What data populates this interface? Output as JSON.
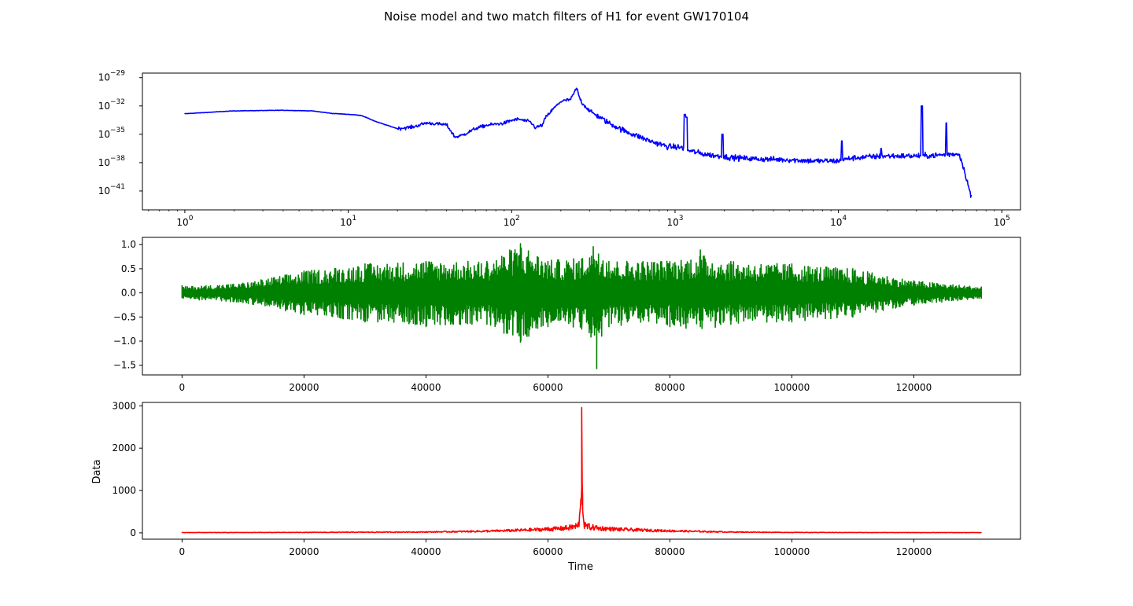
{
  "figure": {
    "title": "Noise model and two match filters of H1 for event GW170104"
  },
  "chart_data": [
    {
      "id": "noise-psd",
      "type": "line",
      "xscale": "log",
      "yscale": "log",
      "xlim": [
        0.55,
        130000
      ],
      "ylim": [
        1e-43,
        3e-29
      ],
      "xticks": [
        1,
        10,
        100,
        1000,
        10000,
        100000
      ],
      "xtick_labels": [
        {
          "base": "10",
          "exp": "0"
        },
        {
          "base": "10",
          "exp": "1"
        },
        {
          "base": "10",
          "exp": "2"
        },
        {
          "base": "10",
          "exp": "3"
        },
        {
          "base": "10",
          "exp": "4"
        },
        {
          "base": "10",
          "exp": "5"
        }
      ],
      "yticks": [
        1e-29,
        1e-32,
        1e-35,
        1e-38,
        1e-41
      ],
      "ytick_labels": [
        {
          "base": "10",
          "exp": "−29"
        },
        {
          "base": "10",
          "exp": "−32"
        },
        {
          "base": "10",
          "exp": "−35"
        },
        {
          "base": "10",
          "exp": "−38"
        },
        {
          "base": "10",
          "exp": "−41"
        }
      ],
      "xlabel": "",
      "ylabel": "",
      "grid": false,
      "series": [
        {
          "color": "#0000ff",
          "x": [
            1,
            2,
            4,
            6,
            8,
            10,
            12,
            15,
            20,
            25,
            30,
            40,
            45,
            50,
            60,
            70,
            90,
            100,
            110,
            130,
            140,
            155,
            160,
            180,
            200,
            230,
            250,
            260,
            270,
            300,
            400,
            500,
            700,
            900,
            1100,
            1200,
            1500,
            2000,
            3000,
            5000,
            7000,
            10000,
            12000,
            15000,
            20000,
            30000,
            40000,
            50000,
            55000,
            60000,
            65000
          ],
          "y": [
            1.5e-33,
            3e-33,
            3.5e-33,
            3e-33,
            1.6e-33,
            1.3e-33,
            1e-33,
            2e-34,
            4e-35,
            6e-35,
            1.6e-34,
            1e-34,
            5e-36,
            8e-36,
            4e-35,
            9e-35,
            1.5e-34,
            3e-34,
            4e-34,
            2e-34,
            5e-35,
            1e-34,
            5e-34,
            5e-33,
            3e-32,
            5e-32,
            8e-31,
            8e-32,
            2e-32,
            3e-33,
            1.3e-34,
            2e-35,
            2e-36,
            5e-37,
            4e-37,
            2e-37,
            8e-38,
            4e-38,
            2.5e-38,
            2e-38,
            1.5e-38,
            1.5e-38,
            3e-38,
            4e-38,
            5e-38,
            5e-38,
            6e-38,
            8e-38,
            8e-38,
            5e-40,
            2e-42
          ]
        }
      ]
    },
    {
      "id": "match-filter-1",
      "type": "line",
      "xlim": [
        -6500,
        137500
      ],
      "ylim": [
        -1.7,
        1.15
      ],
      "xticks": [
        0,
        20000,
        40000,
        60000,
        80000,
        100000,
        120000
      ],
      "xtick_labels": [
        "0",
        "20000",
        "40000",
        "60000",
        "80000",
        "100000",
        "120000"
      ],
      "yticks": [
        1.0,
        0.5,
        0.0,
        -0.5,
        -1.0,
        -1.5
      ],
      "ytick_labels": [
        "1.0",
        "0.5",
        "0.0",
        "−0.5",
        "−1.0",
        "−1.5"
      ],
      "xlabel": "",
      "ylabel": "",
      "grid": false,
      "series": [
        {
          "color": "#008000",
          "x": [
            0,
            10000,
            20000,
            30000,
            40000,
            50000,
            55500,
            60000,
            65536,
            68000,
            70000,
            80000,
            85000,
            90000,
            100000,
            110000,
            120000,
            131072
          ],
          "y_upper": [
            0.15,
            0.2,
            0.45,
            0.6,
            0.65,
            0.65,
            1.02,
            0.65,
            0.7,
            0.65,
            0.65,
            0.65,
            0.89,
            0.65,
            0.6,
            0.5,
            0.25,
            0.12
          ],
          "y_lower": [
            -0.1,
            -0.2,
            -0.45,
            -0.6,
            -0.7,
            -0.65,
            -1.02,
            -0.7,
            -0.75,
            -1.57,
            -0.7,
            -0.7,
            -0.7,
            -0.65,
            -0.6,
            -0.5,
            -0.25,
            -0.12
          ]
        }
      ]
    },
    {
      "id": "match-filter-2",
      "type": "line",
      "xlim": [
        -6500,
        137500
      ],
      "ylim": [
        -150,
        3080
      ],
      "xticks": [
        0,
        20000,
        40000,
        60000,
        80000,
        100000,
        120000
      ],
      "xtick_labels": [
        "0",
        "20000",
        "40000",
        "60000",
        "80000",
        "100000",
        "120000"
      ],
      "yticks": [
        3000,
        2000,
        1000,
        0
      ],
      "ytick_labels": [
        "3000",
        "2000",
        "1000",
        "0"
      ],
      "xlabel": "Time",
      "ylabel": "Data",
      "grid": false,
      "series": [
        {
          "color": "#ff0000",
          "x": [
            0,
            20000,
            40000,
            50000,
            55000,
            60000,
            63000,
            65000,
            65400,
            65536,
            65700,
            66000,
            68000,
            72000,
            80000,
            90000,
            100000,
            120000,
            131072
          ],
          "y": [
            10,
            15,
            30,
            60,
            90,
            130,
            170,
            250,
            800,
            2960,
            850,
            250,
            170,
            120,
            70,
            30,
            15,
            10,
            10
          ]
        }
      ]
    }
  ]
}
